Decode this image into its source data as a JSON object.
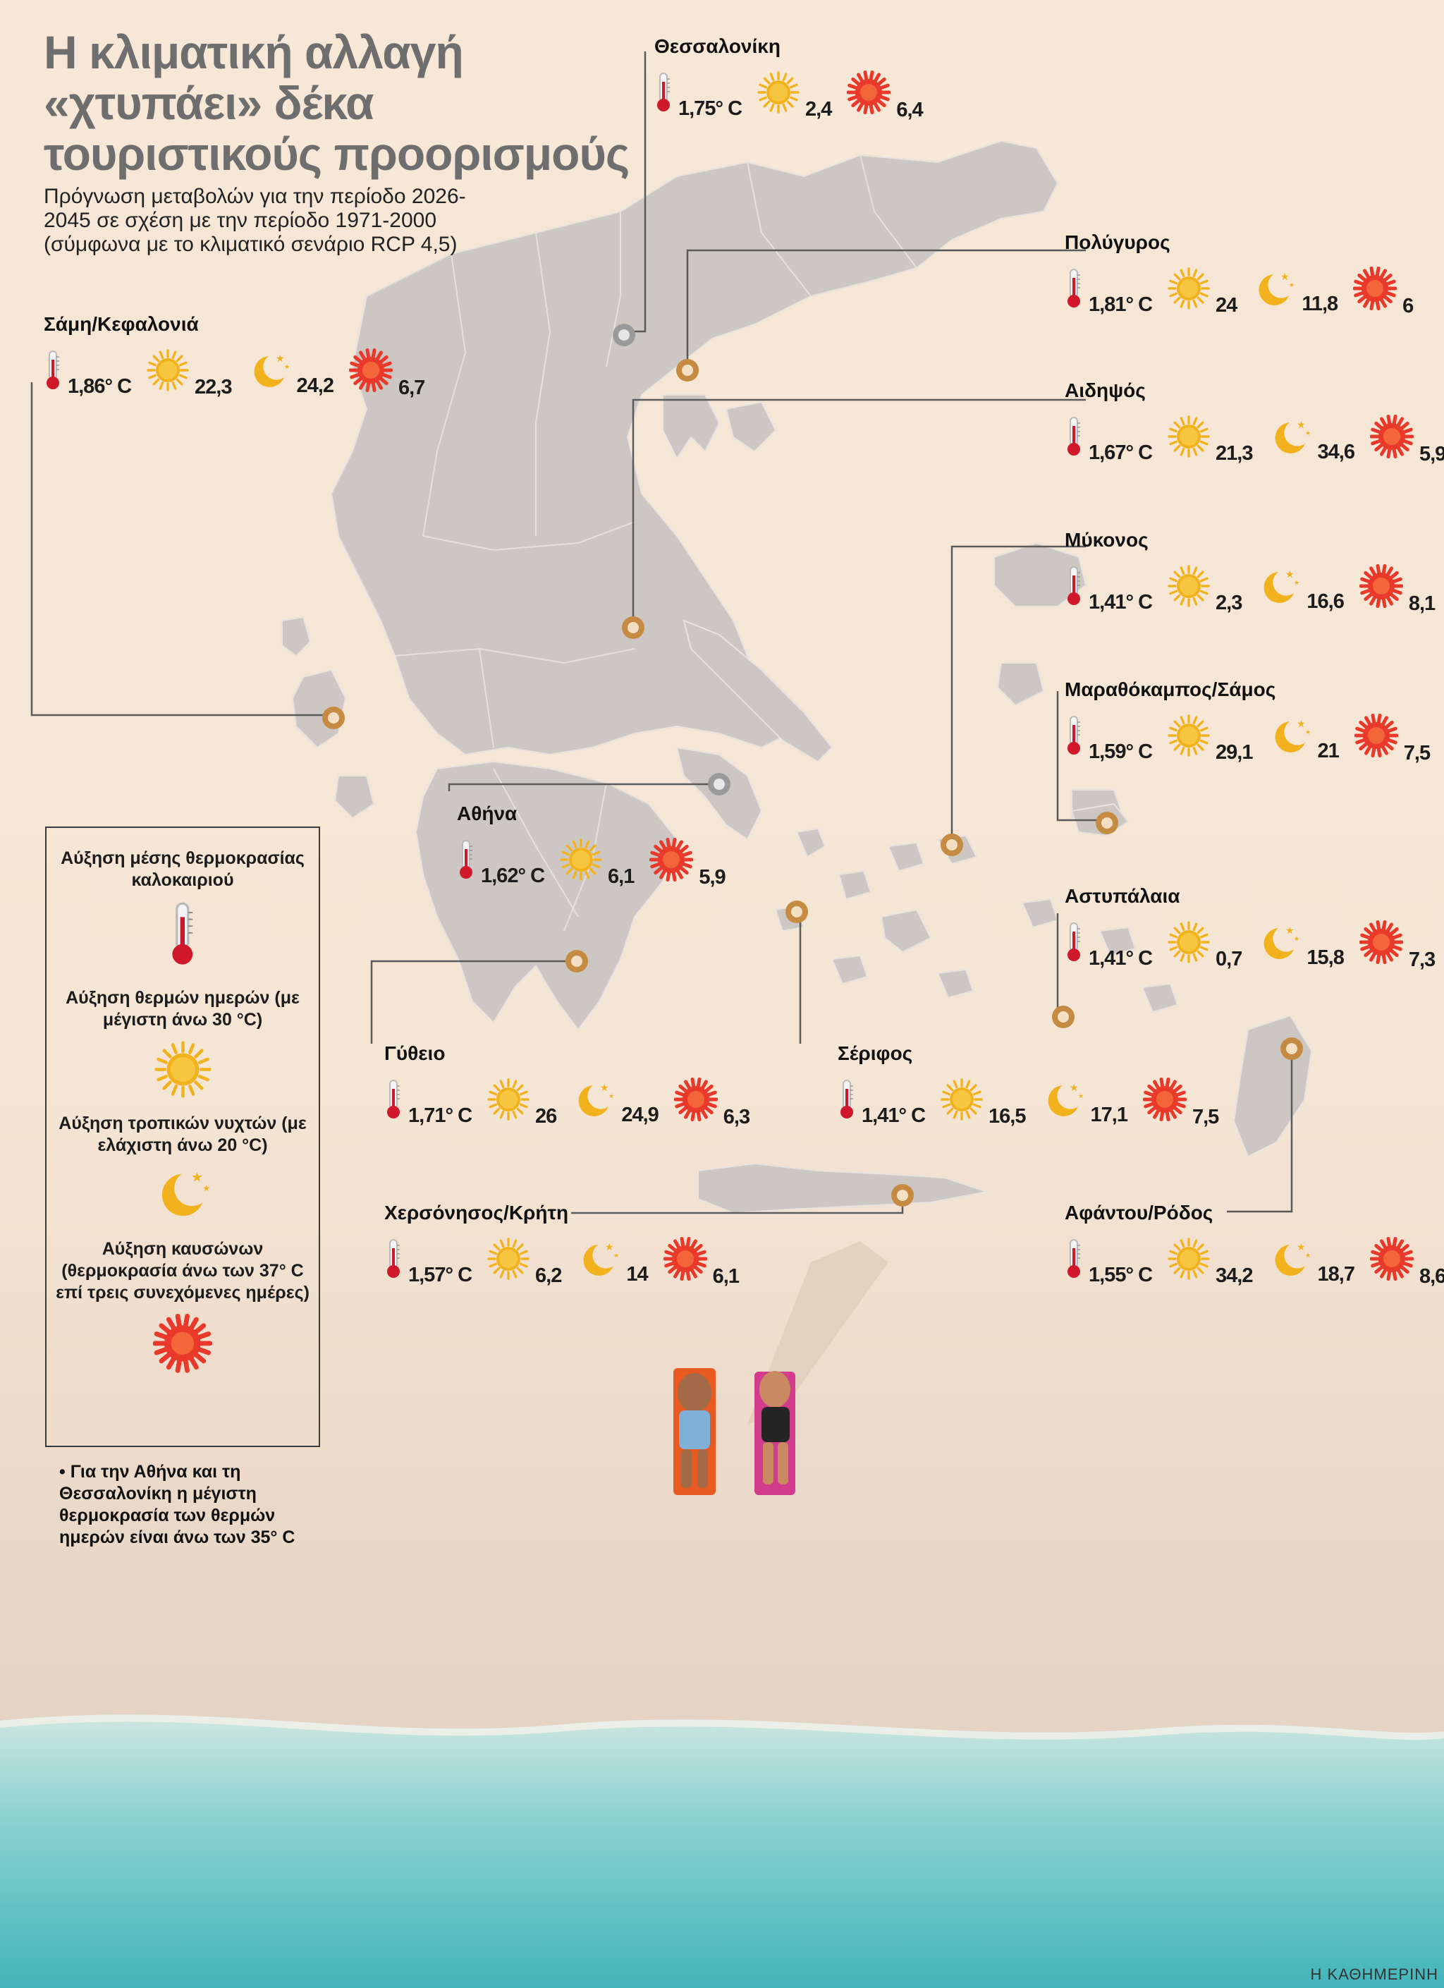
{
  "title": "Η κλιματική αλλαγή «χτυπάει» δέκα τουριστικούς προορισμούς",
  "subtitle": "Πρόγνωση μεταβολών για την περίοδο 2026-2045 σε σχέση με την περίοδο 1971-2000 (σύμφωνα με το κλιματικό σενάριο RCP 4,5)",
  "icons": {
    "temperature": "thermometer-icon",
    "hot_days": "sun-icon",
    "tropical_nights": "moon-stars-icon",
    "heatwaves": "hot-sun-icon"
  },
  "colors": {
    "land": "#ccc7c3",
    "sea": "#f6e7d7",
    "marker_gold": "#c68b43",
    "marker_grey": "#9a9a9a",
    "thermometer": "#d0182b",
    "sun": "#f2b21e",
    "heat": "#e8392a"
  },
  "legend": {
    "temperature": "Αύξηση μέσης θερμοκρασίας καλοκαιριού",
    "hot_days": "Αύξηση θερμών ημερών (με μέγιστη άνω 30 °C)",
    "tropical_nights": "Αύξηση τροπικών νυχτών (με ελάχιστη άνω 20 °C)",
    "heatwaves": "Αύξηση καυσώνων (θερμοκρασία άνω των 37° C επί τρεις συνεχόμενες ημέρες)"
  },
  "note": "• Για την Αθήνα και τη Θεσσαλονίκη η μέγιστη θερμοκρασία των θερμών ημερών είναι άνω των 35° C",
  "credit": "Η ΚΑΘΗΜΕΡΙΝΗ",
  "cities": [
    {
      "id": "thessaloniki",
      "name": "Θεσσαλονίκη",
      "temp": "1,75° C",
      "hot_days": "2,4",
      "tropical_nights": null,
      "heatwaves": "6,4"
    },
    {
      "id": "polygyros",
      "name": "Πολύγυρος",
      "temp": "1,81° C",
      "hot_days": "24",
      "tropical_nights": "11,8",
      "heatwaves": "6"
    },
    {
      "id": "sami",
      "name": "Σάμη/Κεφαλονιά",
      "temp": "1,86° C",
      "hot_days": "22,3",
      "tropical_nights": "24,2",
      "heatwaves": "6,7"
    },
    {
      "id": "aidipsos",
      "name": "Αιδηψός",
      "temp": "1,67° C",
      "hot_days": "21,3",
      "tropical_nights": "34,6",
      "heatwaves": "5,9"
    },
    {
      "id": "mykonos",
      "name": "Μύκονος",
      "temp": "1,41° C",
      "hot_days": "2,3",
      "tropical_nights": "16,6",
      "heatwaves": "8,1"
    },
    {
      "id": "marathokampos",
      "name": "Μαραθόκαμπος/Σάμος",
      "temp": "1,59° C",
      "hot_days": "29,1",
      "tropical_nights": "21",
      "heatwaves": "7,5"
    },
    {
      "id": "athina",
      "name": "Αθήνα",
      "temp": "1,62° C",
      "hot_days": "6,1",
      "tropical_nights": null,
      "heatwaves": "5,9"
    },
    {
      "id": "astypalaia",
      "name": "Αστυπάλαια",
      "temp": "1,41° C",
      "hot_days": "0,7",
      "tropical_nights": "15,8",
      "heatwaves": "7,3"
    },
    {
      "id": "gytheio",
      "name": "Γύθειο",
      "temp": "1,71° C",
      "hot_days": "26",
      "tropical_nights": "24,9",
      "heatwaves": "6,3"
    },
    {
      "id": "serifos",
      "name": "Σέριφος",
      "temp": "1,41° C",
      "hot_days": "16,5",
      "tropical_nights": "17,1",
      "heatwaves": "7,5"
    },
    {
      "id": "chersonissos",
      "name": "Χερσόνησος/Κρήτη",
      "temp": "1,57° C",
      "hot_days": "6,2",
      "tropical_nights": "14",
      "heatwaves": "6,1"
    },
    {
      "id": "afantou",
      "name": "Αφάντου/Ρόδος",
      "temp": "1,55° C",
      "hot_days": "34,2",
      "tropical_nights": "18,7",
      "heatwaves": "8,6"
    }
  ]
}
